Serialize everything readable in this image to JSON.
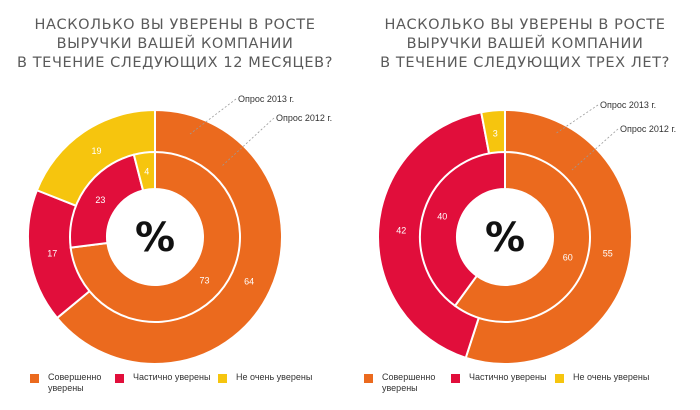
{
  "colors": {
    "fully": "#EB6A1E",
    "partly": "#E10E3B",
    "not_very": "#F6C50E"
  },
  "legend": [
    {
      "key": "fully",
      "label": "Совершенно\nуверены"
    },
    {
      "key": "partly",
      "label": "Частично уверены"
    },
    {
      "key": "not_very",
      "label": "Не очень уверены"
    }
  ],
  "center_symbol": "%",
  "chart_data": [
    {
      "type": "pie",
      "title": "НАСКОЛЬКО ВЫ УВЕРЕНЫ В РОСТЕ\nВЫРУЧКИ ВАШЕЙ КОМПАНИИ\nВ ТЕЧЕНИЕ СЛЕДУЮЩИХ 12 МЕСЯЦЕВ?",
      "categories": [
        "Совершенно уверены",
        "Частично уверены",
        "Не очень уверены"
      ],
      "series": [
        {
          "name": "Опрос 2013 г.",
          "ring": "outer",
          "values": [
            64,
            17,
            19
          ]
        },
        {
          "name": "Опрос 2012 г.",
          "ring": "inner",
          "values": [
            73,
            23,
            4
          ]
        }
      ]
    },
    {
      "type": "pie",
      "title": "НАСКОЛЬКО ВЫ УВЕРЕНЫ В РОСТЕ\nВЫРУЧКИ ВАШЕЙ КОМПАНИИ\nВ ТЕЧЕНИЕ СЛЕДУЮЩИХ ТРЕХ ЛЕТ?",
      "categories": [
        "Совершенно уверены",
        "Частично уверены",
        "Не очень уверены"
      ],
      "series": [
        {
          "name": "Опрос 2013 г.",
          "ring": "outer",
          "values": [
            55,
            42,
            3
          ]
        },
        {
          "name": "Опрос 2012 г.",
          "ring": "inner",
          "values": [
            60,
            40,
            0
          ]
        }
      ]
    }
  ]
}
